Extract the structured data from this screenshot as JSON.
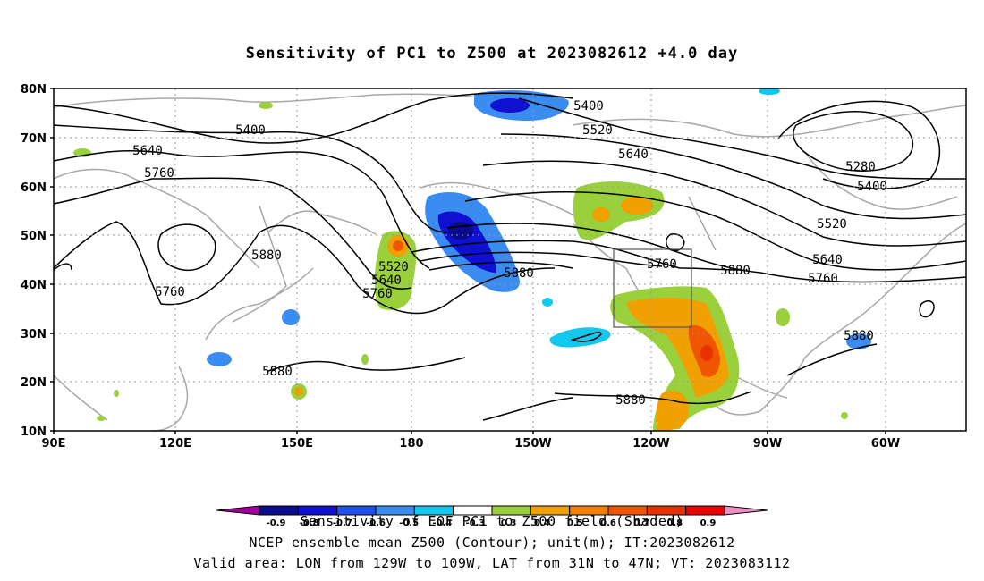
{
  "title": "Sensitivity of PC1 to Z500 at 2023082612 +4.0 day",
  "axes": {
    "lat_labels": [
      "80N",
      "70N",
      "60N",
      "50N",
      "40N",
      "30N",
      "20N",
      "10N"
    ],
    "lon_labels": [
      "90E",
      "120E",
      "150E",
      "180",
      "150W",
      "120W",
      "90W",
      "60W"
    ]
  },
  "contour_labels": [
    "5400",
    "5400",
    "5520",
    "5640",
    "5640",
    "5760",
    "5880",
    "5760",
    "5520",
    "5640",
    "5760",
    "5880",
    "5760",
    "5880",
    "5880",
    "5280",
    "5400",
    "5520",
    "5640",
    "5760",
    "5880",
    "5880"
  ],
  "colorbar": {
    "labels": [
      "-0.9",
      "-0.8",
      "-0.7",
      "-0.6",
      "-0.5",
      "-0.4",
      "-0.3",
      "0.3",
      "0.4",
      "0.5",
      "0.6",
      "0.7",
      "0.8",
      "0.9"
    ],
    "colors": [
      "#a0009a",
      "#0a0a8c",
      "#1010d0",
      "#2050f0",
      "#3a8cf0",
      "#10c8f0",
      "#ffffff",
      "#9ad03c",
      "#f0a000",
      "#f58000",
      "#f05500",
      "#e83000",
      "#ee0000",
      "#e890c0"
    ]
  },
  "validbox": {
    "lon_from": "129W",
    "lon_to": "109W",
    "lat_from": "31N",
    "lat_to": "47N"
  },
  "footer": {
    "line1": "Sensitivity of EOF PC1 to Z500 field (Shaded)",
    "line2": "NCEP ensemble mean Z500 (Contour); unit(m); IT:2023082612",
    "line3": "Valid area: LON from 129W to 109W, LAT from 31N to 47N; VT: 2023083112"
  }
}
